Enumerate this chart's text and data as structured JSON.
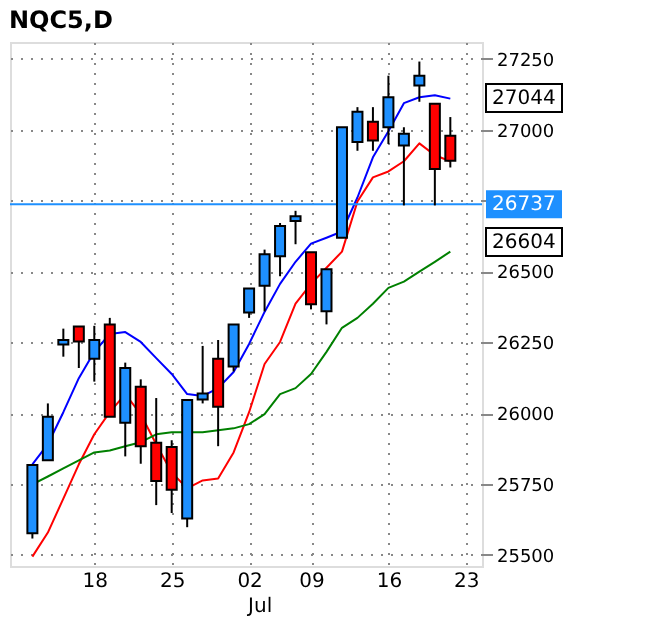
{
  "chart_data": {
    "type": "candlestick",
    "title": "NQC5,D",
    "categories": [
      null,
      null,
      null,
      null,
      "18",
      null,
      null,
      null,
      null,
      "25",
      null,
      null,
      null,
      null,
      "02",
      null,
      null,
      null,
      "09",
      null,
      null,
      null,
      null,
      "16",
      null,
      null,
      null,
      null,
      "23"
    ],
    "ohlc": [
      [
        25576,
        25817,
        25557,
        25817
      ],
      [
        25833,
        26034,
        25833,
        25987
      ],
      [
        26242,
        26298,
        26199,
        26258
      ],
      [
        26306,
        26306,
        26159,
        26253
      ],
      [
        26192,
        26308,
        26111,
        26258
      ],
      [
        26313,
        26336,
        25987,
        25987
      ],
      [
        25966,
        26178,
        25847,
        26159
      ],
      [
        26093,
        26119,
        25821,
        25883
      ],
      [
        25895,
        26053,
        25675,
        25760
      ],
      [
        25880,
        25904,
        25647,
        25729
      ],
      [
        25628,
        26046,
        25597,
        26046
      ],
      [
        26048,
        26237,
        26034,
        26069
      ],
      [
        26192,
        26258,
        25883,
        26022
      ],
      [
        26164,
        26313,
        26147,
        26313
      ],
      [
        26355,
        26440,
        26336,
        26440
      ],
      [
        26449,
        26577,
        26359,
        26561
      ],
      [
        26554,
        26671,
        26483,
        26660
      ],
      [
        26678,
        26714,
        26596,
        26695
      ],
      [
        26568,
        26568,
        26366,
        26384
      ],
      [
        26359,
        26508,
        26313,
        26508
      ],
      [
        26619,
        27009,
        26619,
        27009
      ],
      [
        26957,
        27080,
        26926,
        27064
      ],
      [
        27028,
        27080,
        26926,
        26962
      ],
      [
        27009,
        27191,
        26950,
        27115
      ],
      [
        26945,
        27009,
        26733,
        26986
      ],
      [
        27156,
        27241,
        27099,
        27191
      ],
      [
        27092,
        27092,
        26733,
        26862
      ],
      [
        26979,
        27045,
        26867,
        26891
      ],
      null
    ],
    "colors": [
      "#1e90ff",
      "#1e90ff",
      "#1e90ff",
      "#ff0000",
      "#1e90ff",
      "#ff0000",
      "#1e90ff",
      "#ff0000",
      "#ff0000",
      "#ff0000",
      "#1e90ff",
      "#1e90ff",
      "#ff0000",
      "#1e90ff",
      "#1e90ff",
      "#1e90ff",
      "#1e90ff",
      "#1e90ff",
      "#ff0000",
      "#1e90ff",
      "#1e90ff",
      "#1e90ff",
      "#ff0000",
      "#1e90ff",
      "#1e90ff",
      "#1e90ff",
      "#ff0000",
      "#ff0000",
      null
    ],
    "series": [
      {
        "type": "line",
        "color": "#0000ff",
        "values": [
          25819,
          25890,
          26003,
          26123,
          26216,
          26279,
          26286,
          26251,
          26194,
          26138,
          26067,
          26060,
          26088,
          26145,
          26244,
          26357,
          26456,
          26534,
          26598,
          26619,
          26641,
          26761,
          26903,
          26995,
          27094,
          27115,
          27122,
          27110,
          null
        ]
      },
      {
        "type": "line",
        "color": "#ff0000",
        "values": [
          25493,
          25578,
          25698,
          25819,
          25925,
          26003,
          26067,
          25996,
          25890,
          25790,
          25734,
          25762,
          25769,
          25861,
          26003,
          26173,
          26251,
          26386,
          26456,
          26513,
          26570,
          26747,
          26832,
          26853,
          26889,
          26952,
          26910,
          26889,
          null
        ]
      },
      {
        "type": "line",
        "color": "#008000",
        "values": [
          25748,
          25776,
          25805,
          25833,
          25861,
          25868,
          25883,
          25897,
          25925,
          25932,
          25932,
          25932,
          25939,
          25946,
          25961,
          25996,
          26067,
          26088,
          26138,
          26216,
          26301,
          26336,
          26386,
          26442,
          26464,
          26499,
          26534,
          26570,
          null
        ]
      }
    ],
    "ylim": [
      25460,
      27310
    ],
    "yticks": [
      25500,
      25750,
      26000,
      26250,
      26500,
      {
        "value": 26750,
        "label": null
      },
      27000,
      27250
    ],
    "ref_lines": [
      {
        "axis": "y",
        "value": 26737,
        "label": "26737",
        "color": "#1e90ff"
      }
    ],
    "annotations": [
      "27044",
      "26604",
      "Jul"
    ],
    "grid": true
  }
}
